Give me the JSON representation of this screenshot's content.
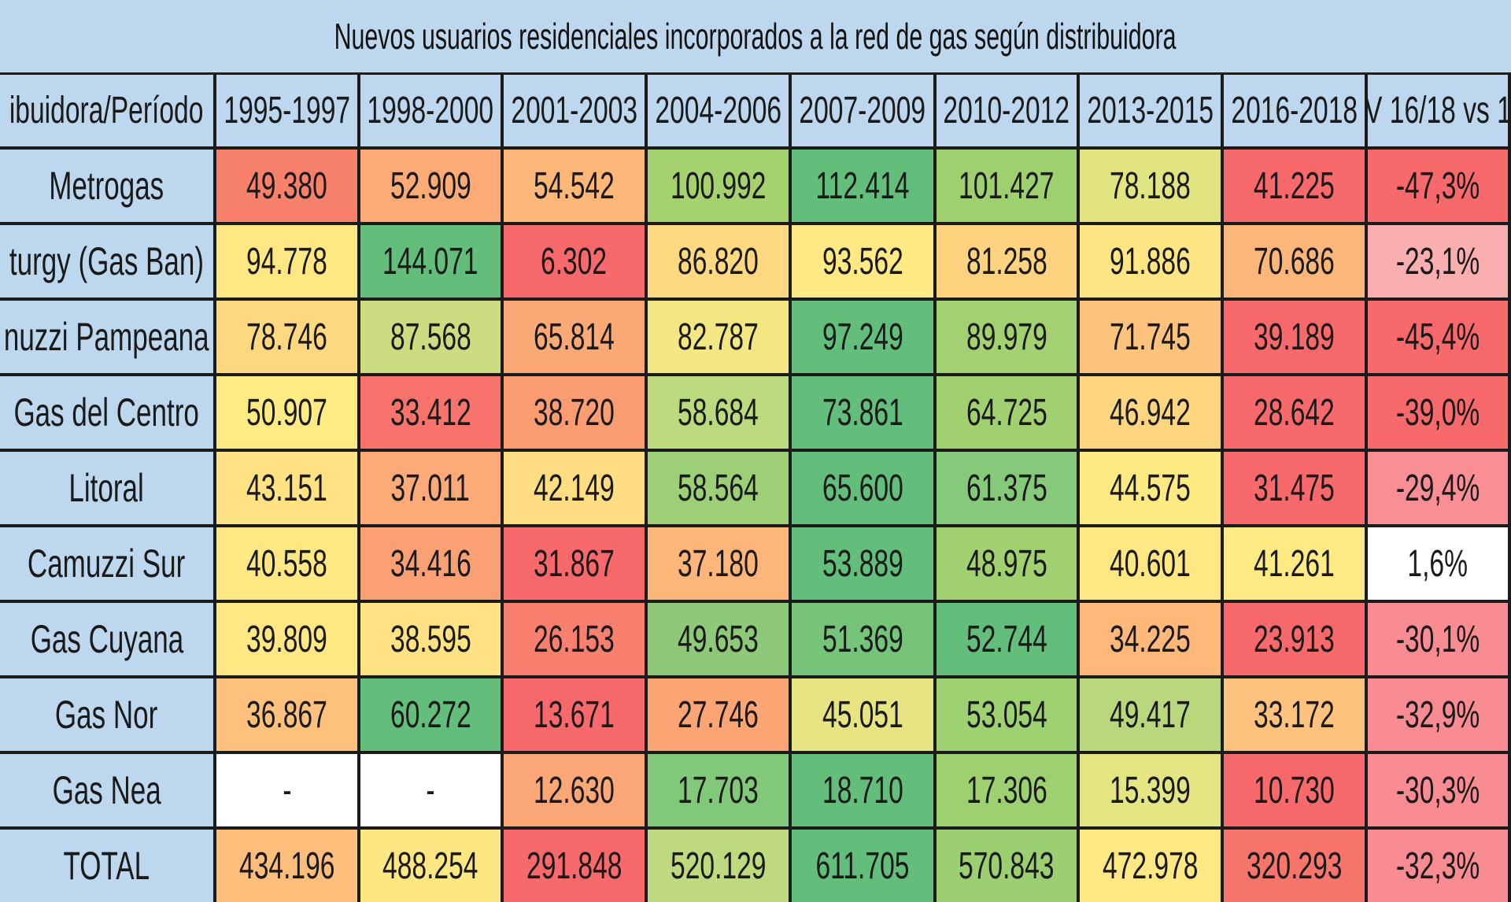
{
  "chart_data": {
    "type": "table",
    "title": "Nuevos usuarios residenciales incorporados a la red de gas según distribuidora",
    "columns": [
      "ibuidora/Período",
      "1995-1997",
      "1998-2000",
      "2001-2003",
      "2004-2006",
      "2007-2009",
      "2010-2012",
      "2013-2015",
      "2016-2018",
      "V 16/18 vs 1"
    ],
    "rows": [
      {
        "label": "Metrogas",
        "values": [
          "49.380",
          "52.909",
          "54.542",
          "100.992",
          "112.414",
          "101.427",
          "78.188",
          "41.225",
          "-47,3%"
        ],
        "colors": [
          "#f8816b",
          "#fcaa76",
          "#fcb779",
          "#a5d26f",
          "#63be7b",
          "#9fd06f",
          "#e2e482",
          "#f8696b",
          "#f8696b"
        ]
      },
      {
        "label": "turgy (Gas Ban)",
        "values": [
          "94.778",
          "144.071",
          "6.302",
          "86.820",
          "93.562",
          "81.258",
          "91.886",
          "70.686",
          "-23,1%"
        ],
        "colors": [
          "#ffe784",
          "#63be7b",
          "#f8696b",
          "#ffd981",
          "#ffe985",
          "#fed380",
          "#ffe684",
          "#fcb67a",
          "#f9aeb0"
        ]
      },
      {
        "label": "nuzzi Pampeana",
        "values": [
          "78.746",
          "87.568",
          "65.814",
          "82.787",
          "97.249",
          "89.979",
          "71.745",
          "39.189",
          "-45,4%"
        ],
        "colors": [
          "#fed880",
          "#cbdc81",
          "#fba976",
          "#f3e783",
          "#63be7b",
          "#a3d172",
          "#fdc37d",
          "#f8696b",
          "#f8696b"
        ]
      },
      {
        "label": "Gas del Centro",
        "values": [
          "50.907",
          "33.412",
          "38.720",
          "58.684",
          "73.861",
          "64.725",
          "46.942",
          "28.642",
          "-39,0%"
        ],
        "colors": [
          "#ffeb84",
          "#f8736c",
          "#fb9c73",
          "#bada7d",
          "#63be7b",
          "#a1d070",
          "#ffd680",
          "#f8696b",
          "#f8696b"
        ]
      },
      {
        "label": "Litoral",
        "values": [
          "43.151",
          "37.011",
          "42.149",
          "58.564",
          "65.600",
          "61.375",
          "44.575",
          "31.475",
          "-29,4%"
        ],
        "colors": [
          "#ffe283",
          "#fcaa77",
          "#ffdd82",
          "#9ccf76",
          "#63be7b",
          "#86c97a",
          "#feea83",
          "#f8696b",
          "#f98e95"
        ]
      },
      {
        "label": "Camuzzi Sur",
        "values": [
          "40.558",
          "34.416",
          "31.867",
          "37.180",
          "53.889",
          "48.975",
          "40.601",
          "41.261",
          "1,6%"
        ],
        "colors": [
          "#ffe884",
          "#fb9f74",
          "#f8696b",
          "#fdb57a",
          "#63be7b",
          "#a0d070",
          "#ffe884",
          "#ffea84",
          "#ffffff"
        ]
      },
      {
        "label": "Gas Cuyana",
        "values": [
          "39.809",
          "38.595",
          "26.153",
          "49.653",
          "51.369",
          "52.744",
          "34.225",
          "23.913",
          "-30,1%"
        ],
        "colors": [
          "#ffe884",
          "#fee283",
          "#f9806e",
          "#8ec97a",
          "#76c37a",
          "#63be7b",
          "#fdb87a",
          "#f8696b",
          "#f98b92"
        ]
      },
      {
        "label": "Gas Nor",
        "values": [
          "36.867",
          "60.272",
          "13.671",
          "27.746",
          "45.051",
          "53.054",
          "49.417",
          "33.172",
          "-32,9%"
        ],
        "colors": [
          "#fdc17d",
          "#63be7b",
          "#f8696b",
          "#fba575",
          "#e6e483",
          "#9ed172",
          "#b9d87d",
          "#fdc27d",
          "#f98c93"
        ]
      },
      {
        "label": "Gas Nea",
        "values": [
          "-",
          "-",
          "12.630",
          "17.703",
          "18.710",
          "17.306",
          "15.399",
          "10.730",
          "-30,3%"
        ],
        "colors": [
          "#ffffff",
          "#ffffff",
          "#fba777",
          "#82c87a",
          "#63be7b",
          "#9cd071",
          "#e5e583",
          "#f8696b",
          "#f98c93"
        ]
      },
      {
        "label": "TOTAL",
        "values": [
          "434.196",
          "488.254",
          "291.848",
          "520.129",
          "611.705",
          "570.843",
          "472.978",
          "320.293",
          "-32,3%"
        ],
        "colors": [
          "#fdbe7c",
          "#fde783",
          "#f8696b",
          "#bfd97e",
          "#63be7b",
          "#9bcf72",
          "#fee883",
          "#f8756c",
          "#f98c93"
        ]
      }
    ]
  }
}
